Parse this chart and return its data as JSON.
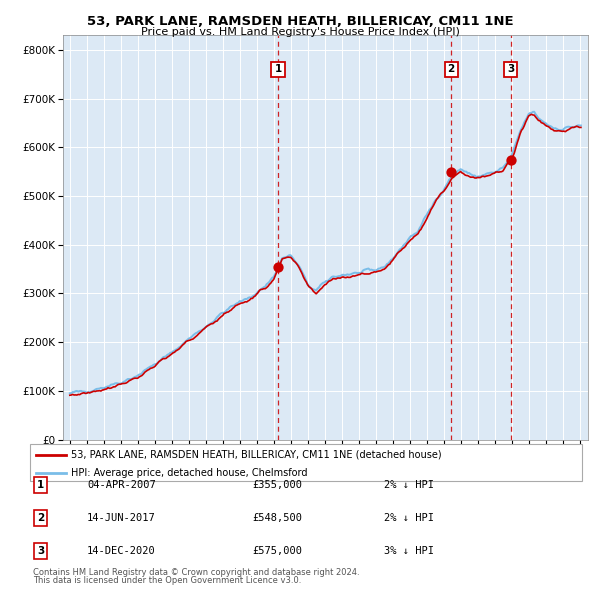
{
  "title": "53, PARK LANE, RAMSDEN HEATH, BILLERICAY, CM11 1NE",
  "subtitle": "Price paid vs. HM Land Registry's House Price Index (HPI)",
  "legend_line1": "53, PARK LANE, RAMSDEN HEATH, BILLERICAY, CM11 1NE (detached house)",
  "legend_line2": "HPI: Average price, detached house, Chelmsford",
  "footer1": "Contains HM Land Registry data © Crown copyright and database right 2024.",
  "footer2": "This data is licensed under the Open Government Licence v3.0.",
  "transactions": [
    {
      "num": 1,
      "date": "04-APR-2007",
      "price": 355000,
      "pct": "2%",
      "dir": "↓"
    },
    {
      "num": 2,
      "date": "14-JUN-2017",
      "price": 548500,
      "pct": "2%",
      "dir": "↓"
    },
    {
      "num": 3,
      "date": "14-DEC-2020",
      "price": 575000,
      "pct": "3%",
      "dir": "↓"
    }
  ],
  "transaction_dates_decimal": [
    2007.253,
    2017.449,
    2020.952
  ],
  "transaction_prices": [
    355000,
    548500,
    575000
  ],
  "background_color": "#dce9f5",
  "grid_color": "#ffffff",
  "hpi_color": "#7abde8",
  "price_color": "#cc0000",
  "marker_color": "#cc0000",
  "vline_color": "#cc0000",
  "ylim": [
    0,
    830000
  ],
  "yticks": [
    0,
    100000,
    200000,
    300000,
    400000,
    500000,
    600000,
    700000,
    800000
  ],
  "xlim_start": 1994.6,
  "xlim_end": 2025.5,
  "x_ticks_start": 1995,
  "x_ticks_end": 2026,
  "anchors_t": [
    1995.0,
    1996.0,
    1997.0,
    1998.0,
    1999.0,
    2000.0,
    2001.0,
    2002.0,
    2003.0,
    2004.0,
    2004.5,
    2005.0,
    2005.5,
    2006.0,
    2006.5,
    2007.0,
    2007.5,
    2008.0,
    2008.5,
    2009.0,
    2009.5,
    2010.0,
    2010.5,
    2011.0,
    2011.5,
    2012.0,
    2012.5,
    2013.0,
    2013.5,
    2014.0,
    2014.5,
    2015.0,
    2015.5,
    2016.0,
    2016.5,
    2017.0,
    2017.5,
    2018.0,
    2018.5,
    2019.0,
    2019.5,
    2020.0,
    2020.5,
    2021.0,
    2021.5,
    2022.0,
    2022.3,
    2022.6,
    2023.0,
    2023.5,
    2024.0,
    2024.5,
    2025.0
  ],
  "anchors_v": [
    95000,
    100000,
    108000,
    118000,
    132000,
    155000,
    178000,
    207000,
    232000,
    260000,
    272000,
    282000,
    290000,
    302000,
    315000,
    335000,
    372000,
    378000,
    355000,
    318000,
    305000,
    322000,
    335000,
    338000,
    340000,
    342000,
    345000,
    348000,
    355000,
    372000,
    392000,
    415000,
    428000,
    460000,
    490000,
    515000,
    542000,
    556000,
    545000,
    540000,
    545000,
    548000,
    558000,
    580000,
    632000,
    668000,
    672000,
    660000,
    650000,
    640000,
    638000,
    642000,
    645000
  ],
  "figsize": [
    6.0,
    5.9
  ],
  "dpi": 100
}
